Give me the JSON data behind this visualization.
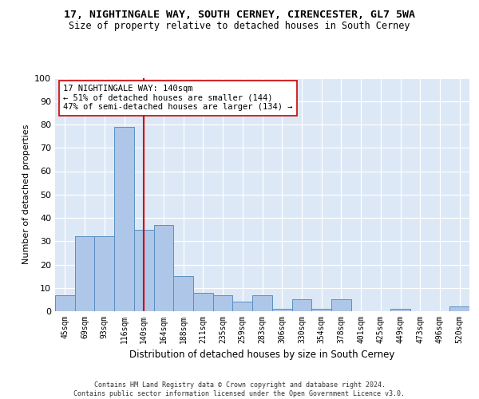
{
  "title1": "17, NIGHTINGALE WAY, SOUTH CERNEY, CIRENCESTER, GL7 5WA",
  "title2": "Size of property relative to detached houses in South Cerney",
  "xlabel": "Distribution of detached houses by size in South Cerney",
  "ylabel": "Number of detached properties",
  "categories": [
    "45sqm",
    "69sqm",
    "93sqm",
    "116sqm",
    "140sqm",
    "164sqm",
    "188sqm",
    "211sqm",
    "235sqm",
    "259sqm",
    "283sqm",
    "306sqm",
    "330sqm",
    "354sqm",
    "378sqm",
    "401sqm",
    "425sqm",
    "449sqm",
    "473sqm",
    "496sqm",
    "520sqm"
  ],
  "values": [
    7,
    32,
    32,
    79,
    35,
    37,
    15,
    8,
    7,
    4,
    7,
    1,
    5,
    1,
    5,
    0,
    0,
    1,
    0,
    0,
    2
  ],
  "bar_color": "#aec6e8",
  "bar_edge_color": "#5a8fc0",
  "vline_x_idx": 4,
  "vline_color": "#cc0000",
  "annotation_text": "17 NIGHTINGALE WAY: 140sqm\n← 51% of detached houses are smaller (144)\n47% of semi-detached houses are larger (134) →",
  "annotation_box_color": "#ffffff",
  "annotation_box_edge": "#cc0000",
  "bg_color": "#dce8f5",
  "footer": "Contains HM Land Registry data © Crown copyright and database right 2024.\nContains public sector information licensed under the Open Government Licence v3.0.",
  "ylim": [
    0,
    100
  ],
  "yticks": [
    0,
    10,
    20,
    30,
    40,
    50,
    60,
    70,
    80,
    90,
    100
  ],
  "title1_fontsize": 9.5,
  "title2_fontsize": 8.5,
  "ylabel_fontsize": 8,
  "xlabel_fontsize": 8.5,
  "tick_fontsize": 7,
  "annot_fontsize": 7.5,
  "footer_fontsize": 6
}
